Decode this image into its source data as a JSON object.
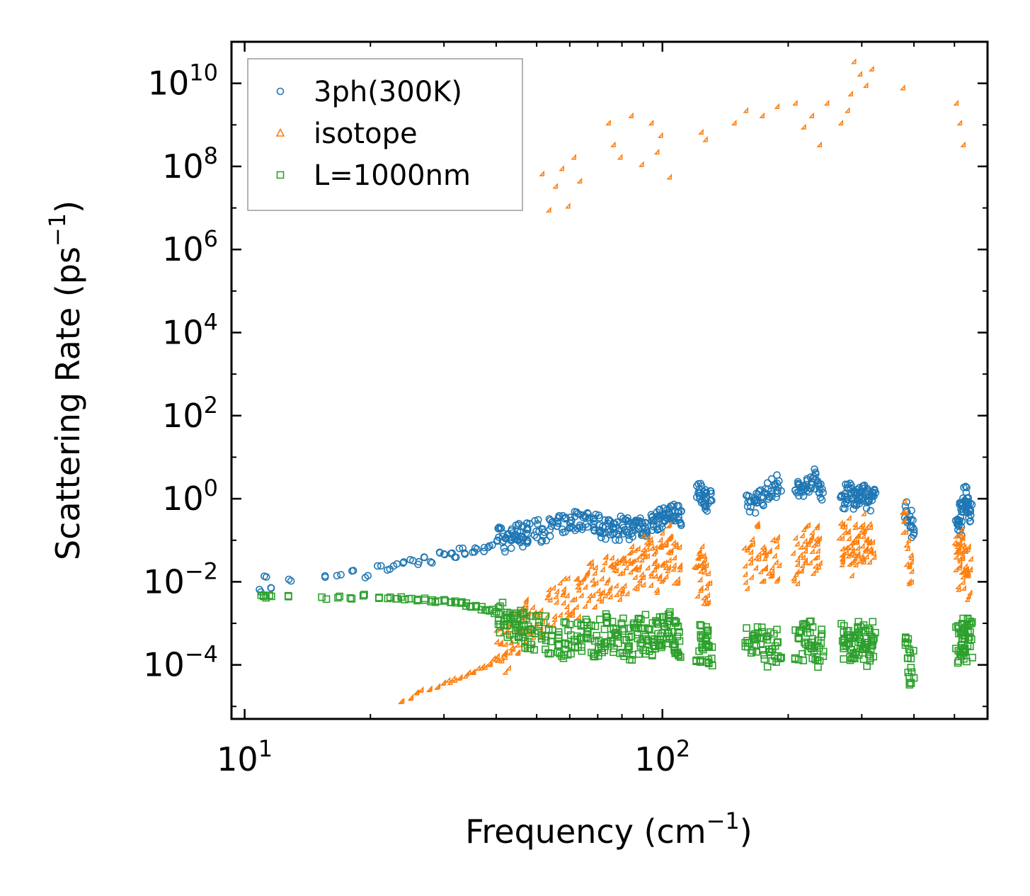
{
  "chart_data": {
    "type": "scatter",
    "title": "",
    "xlabel": "Frequency (cm",
    "xlabel_sup": "−1",
    "xlabel_tail": ")",
    "ylabel": "Scattering Rate (ps",
    "ylabel_sup": "−1",
    "ylabel_tail": ")",
    "xscale": "log",
    "yscale": "log",
    "xlim": [
      9.3,
      600
    ],
    "ylim": [
      5e-06,
      100000000000
    ],
    "grid": false,
    "legend_position": "top-left",
    "x_ticks": [
      {
        "value": 10,
        "base": "10",
        "exp": "1"
      },
      {
        "value": 100,
        "base": "10",
        "exp": "2"
      }
    ],
    "y_ticks": [
      {
        "value": 0.0001,
        "base": "10",
        "exp": "−4"
      },
      {
        "value": 0.01,
        "base": "10",
        "exp": "−2"
      },
      {
        "value": 1,
        "base": "10",
        "exp": "0"
      },
      {
        "value": 100,
        "base": "10",
        "exp": "2"
      },
      {
        "value": 10000,
        "base": "10",
        "exp": "4"
      },
      {
        "value": 1000000,
        "base": "10",
        "exp": "6"
      },
      {
        "value": 100000000,
        "base": "10",
        "exp": "8"
      },
      {
        "value": 10000000000,
        "base": "10",
        "exp": "10"
      }
    ],
    "series": [
      {
        "name": "3ph(300K)",
        "marker": "circle",
        "color": "#1f77b4",
        "x": [
          11,
          11.2,
          11.5,
          12.8,
          15.5,
          16.8,
          18,
          19.5,
          21,
          22,
          23,
          24,
          25,
          26,
          27,
          28,
          29,
          30,
          31,
          32,
          33,
          34,
          35,
          36,
          37,
          38,
          39,
          40,
          41,
          42,
          43,
          44,
          45,
          46,
          47,
          48,
          50,
          52,
          54,
          56,
          58,
          60,
          62,
          64,
          66,
          68,
          70,
          72,
          74,
          76,
          78,
          80,
          82,
          84,
          86,
          88,
          90,
          92,
          94,
          96,
          98,
          100,
          102,
          104,
          106,
          108,
          110,
          122,
          124,
          126,
          128,
          130,
          160,
          165,
          170,
          175,
          180,
          185,
          190,
          210,
          215,
          220,
          225,
          230,
          235,
          240,
          270,
          275,
          280,
          285,
          290,
          295,
          300,
          305,
          310,
          315,
          320,
          385,
          390,
          395,
          510,
          515,
          520,
          525,
          530,
          535,
          540,
          545
        ],
        "y": [
          0.006,
          0.013,
          0.007,
          0.011,
          0.014,
          0.014,
          0.018,
          0.013,
          0.025,
          0.02,
          0.025,
          0.03,
          0.035,
          0.028,
          0.04,
          0.03,
          0.05,
          0.045,
          0.05,
          0.04,
          0.06,
          0.05,
          0.055,
          0.06,
          0.05,
          0.07,
          0.08,
          0.1,
          0.12,
          0.09,
          0.11,
          0.13,
          0.15,
          0.12,
          0.16,
          0.15,
          0.18,
          0.16,
          0.2,
          0.22,
          0.25,
          0.28,
          0.3,
          0.32,
          0.33,
          0.28,
          0.25,
          0.2,
          0.18,
          0.22,
          0.17,
          0.25,
          0.2,
          0.18,
          0.2,
          0.25,
          0.22,
          0.18,
          0.27,
          0.3,
          0.32,
          0.36,
          0.38,
          0.4,
          0.45,
          0.5,
          0.4,
          1.3,
          1.4,
          1.1,
          0.9,
          1.0,
          0.7,
          0.8,
          1.0,
          1.2,
          1.4,
          1.8,
          2.3,
          1.8,
          1.4,
          2.0,
          2.5,
          3.0,
          2.4,
          1.5,
          1.0,
          1.3,
          1.6,
          1.2,
          0.9,
          1.1,
          1.4,
          1.2,
          1.0,
          0.9,
          1.1,
          0.5,
          0.3,
          0.2,
          0.3,
          0.2,
          0.5,
          0.8,
          1.2,
          0.6,
          0.4,
          0.7
        ],
        "y_spread": 0.5
      },
      {
        "name": "isotope",
        "marker": "triangle",
        "color": "#ff7f0e",
        "x": [
          24,
          25,
          26,
          27,
          28,
          29,
          30,
          31,
          32,
          33,
          34,
          35,
          36,
          37,
          38,
          39,
          40,
          41,
          42,
          43,
          44,
          45,
          46,
          47,
          48,
          50,
          52,
          54,
          56,
          58,
          60,
          62,
          64,
          66,
          68,
          70,
          72,
          74,
          76,
          78,
          80,
          82,
          84,
          86,
          88,
          90,
          92,
          94,
          96,
          98,
          100,
          102,
          104,
          106,
          108,
          110,
          122,
          124,
          126,
          128,
          130,
          160,
          165,
          170,
          175,
          180,
          185,
          190,
          210,
          215,
          220,
          225,
          230,
          235,
          240,
          270,
          275,
          280,
          285,
          290,
          295,
          300,
          305,
          310,
          315,
          320,
          385,
          390,
          395,
          510,
          515,
          520,
          525,
          530,
          535,
          540,
          545
        ],
        "y": [
          1.2e-05,
          1.5e-05,
          1.8e-05,
          2.1e-05,
          2.4e-05,
          2.8e-05,
          3.2e-05,
          3.6e-05,
          4e-05,
          4.5e-05,
          5e-05,
          5.6e-05,
          6.2e-05,
          7e-05,
          8.5e-05,
          0.0001,
          0.00013,
          0.00017,
          0.00022,
          0.0003,
          0.0004,
          0.0005,
          0.0007,
          0.0008,
          0.0009,
          0.001,
          0.0012,
          0.0018,
          0.0025,
          0.003,
          0.004,
          0.0035,
          0.005,
          0.006,
          0.007,
          0.008,
          0.0075,
          0.01,
          0.009,
          0.011,
          0.01,
          0.012,
          0.015,
          0.018,
          0.02,
          0.03,
          0.04,
          0.025,
          0.02,
          0.015,
          0.03,
          0.04,
          0.06,
          0.05,
          0.03,
          0.02,
          0.015,
          0.02,
          0.012,
          0.01,
          0.008,
          0.02,
          0.04,
          0.06,
          0.03,
          0.05,
          0.04,
          0.03,
          0.03,
          0.05,
          0.06,
          0.08,
          0.04,
          0.06,
          0.05,
          0.06,
          0.08,
          0.1,
          0.07,
          0.05,
          0.08,
          0.09,
          0.06,
          0.1,
          0.07,
          0.08,
          0.2,
          0.05,
          0.02,
          0.03,
          0.02,
          0.05,
          0.03,
          0.02,
          0.01,
          0.02,
          0.015
        ],
        "y_spread": 1.2,
        "outlier_x": [
          52,
          54,
          56,
          58,
          60,
          62,
          64,
          75,
          77,
          80,
          85,
          90,
          95,
          98,
          100,
          105,
          125,
          128,
          150,
          160,
          175,
          190,
          210,
          220,
          230,
          240,
          250,
          270,
          280,
          285,
          290,
          300,
          310,
          320,
          380,
          510,
          520,
          530
        ],
        "outlier_y": [
          60000000,
          8000000,
          30000000,
          80000000,
          10000000,
          150000000,
          40000000,
          1000000000,
          300000000,
          150000000,
          1500000000,
          100000000,
          1000000000,
          200000000,
          500000000,
          50000000,
          600000000,
          400000000,
          1000000000,
          2000000000,
          1500000000,
          2500000000,
          3000000000,
          800000000,
          1500000000,
          300000000,
          3000000000,
          1000000000,
          2000000000,
          5000000000,
          30000000000,
          15000000000,
          8000000000,
          20000000000,
          7000000000,
          3000000000,
          1000000000,
          300000000
        ]
      },
      {
        "name": "L=1000nm",
        "marker": "square",
        "color": "#2ca02c",
        "x": [
          11,
          11.2,
          11.5,
          12.8,
          15.5,
          16.8,
          18,
          19.5,
          21,
          22,
          23,
          24,
          25,
          26,
          27,
          28,
          29,
          30,
          31,
          32,
          33,
          34,
          35,
          36,
          37,
          38,
          39,
          40,
          41,
          42,
          43,
          44,
          45,
          46,
          47,
          48,
          50,
          52,
          54,
          56,
          58,
          60,
          62,
          64,
          66,
          68,
          70,
          72,
          74,
          76,
          78,
          80,
          82,
          84,
          86,
          88,
          90,
          92,
          94,
          96,
          98,
          100,
          102,
          104,
          106,
          108,
          110,
          122,
          124,
          126,
          128,
          130,
          160,
          165,
          170,
          175,
          180,
          185,
          190,
          210,
          215,
          220,
          225,
          230,
          235,
          240,
          270,
          275,
          280,
          285,
          290,
          295,
          300,
          305,
          310,
          315,
          320,
          385,
          390,
          395,
          510,
          515,
          520,
          525,
          530,
          535,
          540,
          545
        ],
        "y": [
          0.0045,
          0.0044,
          0.0044,
          0.0043,
          0.0042,
          0.0042,
          0.0042,
          0.0048,
          0.0043,
          0.0042,
          0.0041,
          0.004,
          0.0039,
          0.0038,
          0.0037,
          0.0036,
          0.0035,
          0.0034,
          0.0033,
          0.0032,
          0.003,
          0.0028,
          0.0027,
          0.0025,
          0.0023,
          0.0022,
          0.002,
          0.0018,
          0.0015,
          0.0013,
          0.0011,
          0.001,
          0.0009,
          0.0008,
          0.0007,
          0.0007,
          0.0006,
          0.00055,
          0.0005,
          0.00045,
          0.0004,
          0.00045,
          0.0005,
          0.0006,
          0.0005,
          0.0004,
          0.00045,
          0.0005,
          0.0006,
          0.0004,
          0.00045,
          0.0005,
          0.0004,
          0.00035,
          0.0004,
          0.0005,
          0.0006,
          0.0005,
          0.0004,
          0.0005,
          0.0006,
          0.0007,
          0.0008,
          0.0007,
          0.0006,
          0.0005,
          0.0004,
          0.0003,
          0.00035,
          0.0004,
          0.0003,
          0.00025,
          0.0003,
          0.00035,
          0.0004,
          0.0003,
          0.00025,
          0.0003,
          0.0004,
          0.0003,
          0.00035,
          0.00045,
          0.0004,
          0.0003,
          0.00025,
          0.0003,
          0.0004,
          0.00035,
          0.0003,
          0.00025,
          0.0003,
          0.0004,
          0.00035,
          0.0003,
          0.00025,
          0.0003,
          0.0004,
          0.0002,
          0.0001,
          8e-05,
          0.0003,
          0.0004,
          0.0005,
          0.0004,
          0.0003,
          0.0004,
          0.0005,
          0.0004
        ],
        "y_spread": 0.9
      }
    ]
  }
}
